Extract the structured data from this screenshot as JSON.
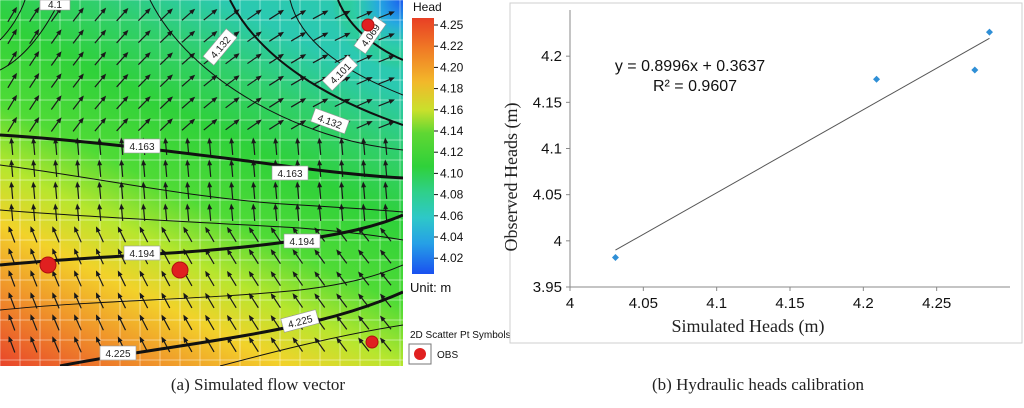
{
  "map": {
    "legend_title": "Head",
    "legend_ticks": [
      "4.25",
      "4.22",
      "4.20",
      "4.18",
      "4.16",
      "4.14",
      "4.12",
      "4.10",
      "4.08",
      "4.06",
      "4.04",
      "4.02"
    ],
    "unit_label": "Unit: m",
    "scatter_title": "2D Scatter Pt Symbols",
    "obs_label": "OBS",
    "contour_labels": [
      "4.069",
      "4.101",
      "4.132",
      "4.132",
      "4.163",
      "4.163",
      "4.194",
      "4.194",
      "4.225",
      "4.225",
      "4.1"
    ],
    "caption": "(a) Simulated flow vector",
    "colors": {
      "high": "#e8452a",
      "mid": "#2fd13a",
      "low": "#1a5cf0",
      "obs": "#e02020"
    }
  },
  "chart_data": {
    "type": "scatter",
    "title": "",
    "xlabel": "Simulated Heads (m)",
    "ylabel": "Observed Heads (m)",
    "xlim": [
      4,
      4.3
    ],
    "ylim": [
      3.95,
      4.25
    ],
    "x_ticks": [
      "4",
      "4.05",
      "4.1",
      "4.15",
      "4.2",
      "4.25"
    ],
    "y_ticks": [
      "3.95",
      "4",
      "4.05",
      "4.1",
      "4.15",
      "4.2"
    ],
    "points": [
      {
        "x": 4.031,
        "y": 3.982
      },
      {
        "x": 4.209,
        "y": 4.175
      },
      {
        "x": 4.276,
        "y": 4.185
      },
      {
        "x": 4.286,
        "y": 4.226
      }
    ],
    "trendline": {
      "slope": 0.8996,
      "intercept": 0.3637,
      "x_range": [
        4.031,
        4.286
      ]
    },
    "equation": "y = 0.8996x + 0.3637",
    "r_squared": "R² = 0.9607",
    "marker_color": "#2f8fd6",
    "caption": "(b) Hydraulic heads calibration"
  }
}
